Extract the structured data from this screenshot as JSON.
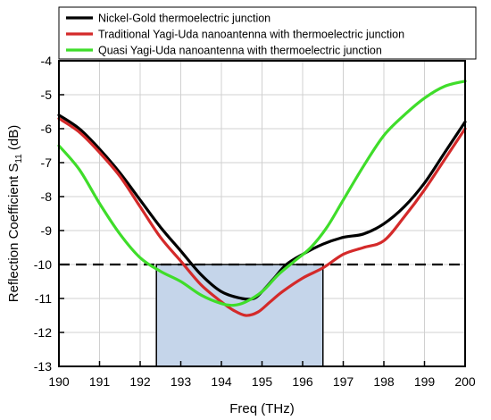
{
  "chart_data": {
    "type": "line",
    "xlabel": "Freq (THz)",
    "ylabel": "Reflection Coefficient S",
    "ylabel_subscript": "11",
    "ylabel_unit": " (dB)",
    "xlim": [
      190,
      200
    ],
    "ylim": [
      -13,
      -4
    ],
    "xticks": [
      190,
      191,
      192,
      193,
      194,
      195,
      196,
      197,
      198,
      199,
      200
    ],
    "yticks": [
      -13,
      -12,
      -11,
      -10,
      -9,
      -8,
      -7,
      -6,
      -5,
      -4
    ],
    "grid": true,
    "legend_position": "top",
    "reference_line": {
      "y": -10,
      "style": "dashed",
      "color": "#000000"
    },
    "highlight_region": {
      "x": [
        192.4,
        196.5
      ],
      "y": [
        -13,
        -10
      ],
      "color": "#c5d5ea"
    },
    "series": [
      {
        "name": "Nickel-Gold thermoelectric junction",
        "color": "#000000",
        "x": [
          190,
          190.5,
          191,
          191.5,
          192,
          192.5,
          193,
          193.5,
          194,
          194.5,
          194.8,
          195,
          195.3,
          195.6,
          196,
          196.5,
          197,
          197.5,
          198,
          198.5,
          199,
          199.5,
          200
        ],
        "y": [
          -5.6,
          -6.0,
          -6.6,
          -7.3,
          -8.1,
          -8.9,
          -9.6,
          -10.3,
          -10.8,
          -11.0,
          -11.0,
          -10.8,
          -10.4,
          -10.0,
          -9.7,
          -9.4,
          -9.2,
          -9.1,
          -8.8,
          -8.3,
          -7.6,
          -6.7,
          -5.8
        ]
      },
      {
        "name": "Traditional Yagi-Uda nanoantenna with thermoelectric junction",
        "color": "#d42a2a",
        "x": [
          190,
          190.5,
          191,
          191.5,
          192,
          192.5,
          193,
          193.5,
          194,
          194.3,
          194.6,
          194.9,
          195.2,
          195.5,
          196,
          196.5,
          197,
          197.5,
          198,
          198.5,
          199,
          199.5,
          200
        ],
        "y": [
          -5.7,
          -6.1,
          -6.7,
          -7.4,
          -8.3,
          -9.2,
          -9.9,
          -10.6,
          -11.1,
          -11.35,
          -11.5,
          -11.4,
          -11.1,
          -10.8,
          -10.4,
          -10.1,
          -9.7,
          -9.5,
          -9.3,
          -8.6,
          -7.8,
          -6.9,
          -6.0
        ]
      },
      {
        "name": "Quasi Yagi-Uda nanoantenna with thermoelectric junction",
        "color": "#3fdd2a",
        "x": [
          190,
          190.5,
          191,
          191.5,
          192,
          192.5,
          193,
          193.5,
          194,
          194.3,
          194.6,
          195,
          195.4,
          195.8,
          196.2,
          196.6,
          197,
          197.5,
          198,
          198.5,
          199,
          199.5,
          200
        ],
        "y": [
          -6.5,
          -7.2,
          -8.2,
          -9.1,
          -9.8,
          -10.2,
          -10.5,
          -10.9,
          -11.15,
          -11.2,
          -11.1,
          -10.8,
          -10.3,
          -9.9,
          -9.5,
          -8.9,
          -8.1,
          -7.1,
          -6.2,
          -5.6,
          -5.1,
          -4.75,
          -4.6
        ]
      }
    ]
  }
}
